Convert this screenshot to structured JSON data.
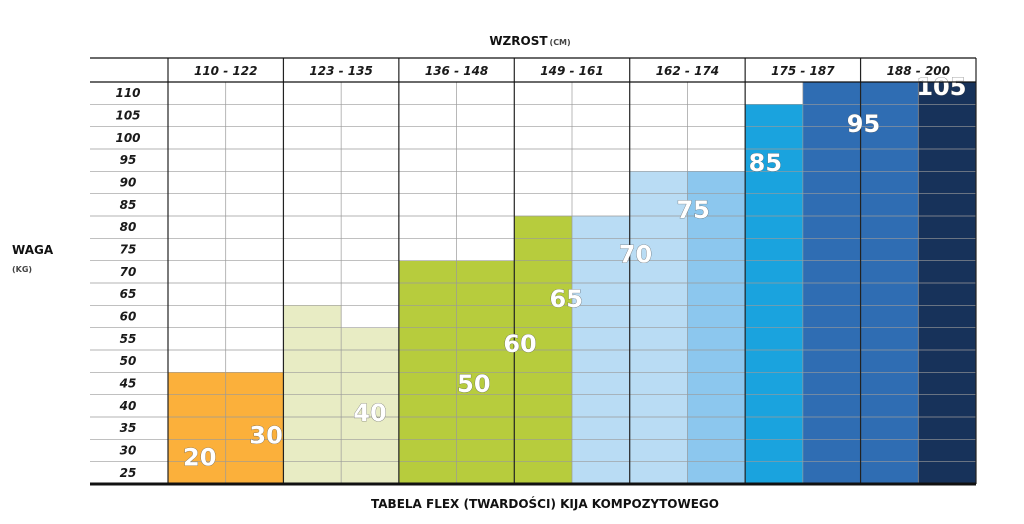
{
  "chart_data": {
    "type": "heatmap",
    "title": "TABELA FLEX (TWARDOŚCI) KIJA KOMPOZYTOWEGO",
    "xlabel": "WZROST",
    "xlabel_unit": "(CM)",
    "ylabel": "WAGA",
    "ylabel_unit": "(KG)",
    "x_categories": [
      "110 - 122",
      "123 - 135",
      "136 - 148",
      "149 - 161",
      "162 - 174",
      "175 - 187",
      "188 - 200"
    ],
    "y_categories": [
      "110",
      "105",
      "100",
      "95",
      "90",
      "85",
      "80",
      "75",
      "70",
      "65",
      "60",
      "55",
      "50",
      "45",
      "40",
      "35",
      "30",
      "25"
    ],
    "flex_values": [
      "20",
      "30",
      "40",
      "50",
      "60",
      "65",
      "70",
      "75",
      "85",
      "95",
      "105"
    ],
    "colors": {
      "20": "#fde4b8",
      "30": "#fdc972",
      "40": "#fbb03b",
      "50": "#e8ecc4",
      "60": "#d6e19a",
      "65": "#b7cc3d",
      "70": "#b9dcf4",
      "75": "#8cc7ee",
      "85": "#1aa3de",
      "95": "#2f6db3",
      "105": "#17325a"
    }
  }
}
